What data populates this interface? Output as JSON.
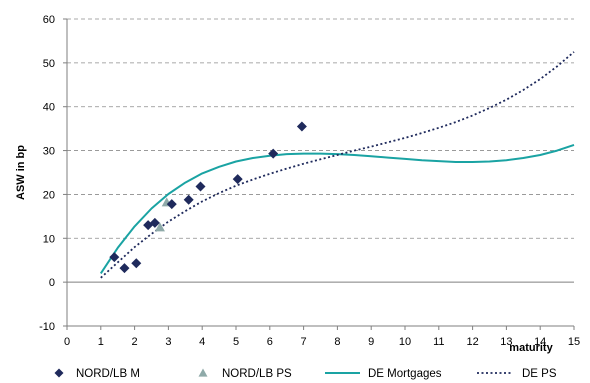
{
  "chart_data": {
    "type": "scatter",
    "title": "",
    "xlabel": "maturity",
    "ylabel": "ASW in bp",
    "xlim": [
      0,
      15
    ],
    "ylim": [
      -10,
      60
    ],
    "x_ticks": [
      "0",
      "1",
      "2",
      "3",
      "4",
      "5",
      "6",
      "7",
      "8",
      "9",
      "10",
      "11",
      "12",
      "13",
      "14",
      "15"
    ],
    "y_ticks": [
      "-10",
      "0",
      "10",
      "20",
      "30",
      "40",
      "50",
      "60"
    ],
    "grid": "horizontal dashed",
    "legend_position": "bottom",
    "colors": {
      "nord_m": "#1f2a5c",
      "nord_ps": "#8faaa9",
      "de_mortgages": "#1aa3a3",
      "de_ps": "#1f2a5c",
      "grid": "#8c8c8c"
    },
    "series": [
      {
        "name": "NORD/LB  M",
        "kind": "diamond-markers",
        "points": [
          [
            1.4,
            5.7
          ],
          [
            1.7,
            3.2
          ],
          [
            2.05,
            4.3
          ],
          [
            2.4,
            13.0
          ],
          [
            2.6,
            13.5
          ],
          [
            3.1,
            17.8
          ],
          [
            3.6,
            18.8
          ],
          [
            3.95,
            21.8
          ],
          [
            5.05,
            23.5
          ],
          [
            6.1,
            29.3
          ],
          [
            6.95,
            35.5
          ]
        ]
      },
      {
        "name": "NORD/LB  PS",
        "kind": "triangle-markers",
        "points": [
          [
            2.75,
            12.5
          ],
          [
            2.95,
            18.2
          ]
        ]
      },
      {
        "name": "DE  Mortgages",
        "kind": "solid-line",
        "points": [
          [
            1.0,
            2.0
          ],
          [
            1.5,
            7.8
          ],
          [
            2.0,
            12.7
          ],
          [
            2.5,
            16.8
          ],
          [
            3.0,
            20.1
          ],
          [
            3.5,
            22.7
          ],
          [
            4.0,
            24.8
          ],
          [
            4.5,
            26.3
          ],
          [
            5.0,
            27.5
          ],
          [
            5.5,
            28.3
          ],
          [
            6.0,
            28.8
          ],
          [
            6.5,
            29.2
          ],
          [
            7.0,
            29.3
          ],
          [
            7.5,
            29.3
          ],
          [
            8.0,
            29.2
          ],
          [
            8.5,
            29.0
          ],
          [
            9.0,
            28.7
          ],
          [
            9.5,
            28.4
          ],
          [
            10.0,
            28.1
          ],
          [
            10.5,
            27.8
          ],
          [
            11.0,
            27.6
          ],
          [
            11.5,
            27.4
          ],
          [
            12.0,
            27.4
          ],
          [
            12.5,
            27.5
          ],
          [
            13.0,
            27.8
          ],
          [
            13.5,
            28.3
          ],
          [
            14.0,
            29.0
          ],
          [
            14.5,
            30.0
          ],
          [
            15.0,
            31.3
          ]
        ]
      },
      {
        "name": "DE  PS",
        "kind": "dotted-line",
        "points": [
          [
            1.0,
            1.0
          ],
          [
            1.5,
            4.5
          ],
          [
            2.0,
            8.0
          ],
          [
            2.5,
            11.0
          ],
          [
            3.0,
            13.8
          ],
          [
            3.5,
            16.2
          ],
          [
            4.0,
            18.4
          ],
          [
            4.5,
            20.3
          ],
          [
            5.0,
            22.0
          ],
          [
            5.5,
            23.4
          ],
          [
            6.0,
            24.7
          ],
          [
            6.5,
            25.9
          ],
          [
            7.0,
            27.0
          ],
          [
            7.5,
            28.0
          ],
          [
            8.0,
            29.0
          ],
          [
            8.5,
            30.0
          ],
          [
            9.0,
            30.9
          ],
          [
            9.5,
            31.9
          ],
          [
            10.0,
            32.9
          ],
          [
            10.5,
            34.0
          ],
          [
            11.0,
            35.2
          ],
          [
            11.5,
            36.5
          ],
          [
            12.0,
            38.0
          ],
          [
            12.5,
            39.7
          ],
          [
            13.0,
            41.6
          ],
          [
            13.5,
            43.8
          ],
          [
            14.0,
            46.3
          ],
          [
            14.5,
            49.2
          ],
          [
            15.0,
            52.5
          ]
        ]
      }
    ]
  }
}
